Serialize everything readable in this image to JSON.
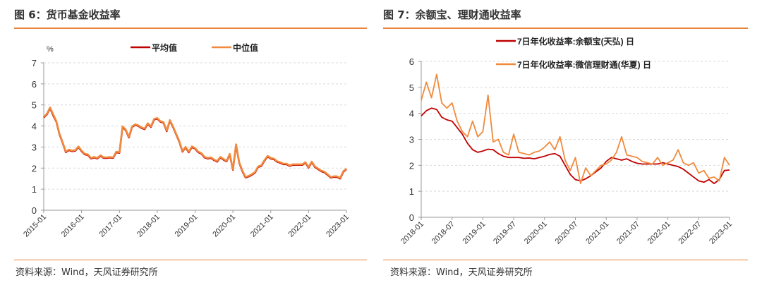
{
  "colors": {
    "accent": "#e8833a",
    "red": "#c00000",
    "orange": "#f08a3c"
  },
  "left": {
    "title": "图 6：货币基金收益率",
    "source": "资料来源：Wind，天风证券研究所"
  },
  "right": {
    "title": "图 7：余额宝、理财通收益率",
    "source": "资料来源：Wind，天风证券研究所"
  },
  "chart_data": [
    {
      "type": "line",
      "title": "货币基金收益率",
      "ylabel": "%",
      "ylim": [
        0,
        7
      ],
      "yticks": [
        "0",
        "1",
        "2",
        "3",
        "4",
        "5",
        "6",
        "7"
      ],
      "xticks": [
        "2015-01",
        "2016-01",
        "2017-01",
        "2018-01",
        "2019-01",
        "2020-01",
        "2021-01",
        "2022-01",
        "2023-01"
      ],
      "x_start": "2015-01",
      "x_step": "month",
      "grid": true,
      "legend": "top",
      "series": [
        {
          "name": "平均值",
          "color": "#c00000",
          "values": [
            4.4,
            4.55,
            4.85,
            4.5,
            4.2,
            3.6,
            3.2,
            2.75,
            2.85,
            2.8,
            2.82,
            3.0,
            2.8,
            2.65,
            2.62,
            2.45,
            2.5,
            2.45,
            2.58,
            2.48,
            2.48,
            2.5,
            2.48,
            2.75,
            2.72,
            3.95,
            3.8,
            3.45,
            3.95,
            4.05,
            4.0,
            3.9,
            3.85,
            4.1,
            3.95,
            4.3,
            4.35,
            4.2,
            4.15,
            3.75,
            4.25,
            3.95,
            3.6,
            3.25,
            2.78,
            2.98,
            2.75,
            3.0,
            2.92,
            2.75,
            2.68,
            2.5,
            2.45,
            2.48,
            2.38,
            2.3,
            2.5,
            2.4,
            2.32,
            2.65,
            1.92,
            3.1,
            2.25,
            1.85,
            1.55,
            1.6,
            1.68,
            1.78,
            2.05,
            2.1,
            2.35,
            2.55,
            2.45,
            2.42,
            2.3,
            2.25,
            2.18,
            2.18,
            2.1,
            2.15,
            2.15,
            2.15,
            2.15,
            2.25,
            2.02,
            2.28,
            2.05,
            1.95,
            1.85,
            1.8,
            1.68,
            1.55,
            1.58,
            1.58,
            1.5,
            1.82,
            1.95
          ]
        },
        {
          "name": "中位值",
          "color": "#f08a3c",
          "values": [
            4.43,
            4.58,
            4.88,
            4.55,
            4.23,
            3.63,
            3.23,
            2.78,
            2.88,
            2.83,
            2.85,
            3.03,
            2.83,
            2.68,
            2.65,
            2.48,
            2.53,
            2.48,
            2.61,
            2.51,
            2.51,
            2.53,
            2.51,
            2.78,
            2.75,
            3.98,
            3.83,
            3.48,
            3.98,
            4.08,
            4.03,
            3.93,
            3.88,
            4.13,
            3.98,
            4.33,
            4.38,
            4.23,
            4.18,
            3.78,
            4.28,
            3.98,
            3.63,
            3.28,
            2.81,
            3.01,
            2.78,
            3.03,
            2.95,
            2.78,
            2.71,
            2.53,
            2.48,
            2.51,
            2.41,
            2.33,
            2.53,
            2.43,
            2.35,
            2.68,
            1.95,
            3.13,
            2.28,
            1.88,
            1.58,
            1.63,
            1.71,
            1.81,
            2.08,
            2.13,
            2.38,
            2.58,
            2.48,
            2.45,
            2.33,
            2.28,
            2.21,
            2.21,
            2.13,
            2.18,
            2.18,
            2.18,
            2.18,
            2.28,
            2.05,
            2.31,
            2.08,
            1.98,
            1.88,
            1.83,
            1.71,
            1.58,
            1.61,
            1.61,
            1.53,
            1.85,
            1.98
          ]
        }
      ]
    },
    {
      "type": "line",
      "title": "余额宝、理财通收益率",
      "ylim": [
        0,
        6
      ],
      "yticks": [
        "0",
        "1",
        "2",
        "3",
        "4",
        "5",
        "6"
      ],
      "xticks": [
        "2018-01",
        "2018-07",
        "2019-01",
        "2019-07",
        "2020-01",
        "2020-07",
        "2021-01",
        "2021-07",
        "2022-01",
        "2022-07",
        "2023-01"
      ],
      "x_start": "2018-01",
      "x_step": "month",
      "grid": true,
      "legend": "top",
      "series": [
        {
          "name": "7日年化收益率:余额宝(天弘) 日",
          "color": "#c00000",
          "values": [
            3.9,
            4.1,
            4.2,
            4.15,
            3.85,
            3.75,
            3.7,
            3.45,
            3.2,
            2.85,
            2.6,
            2.5,
            2.55,
            2.62,
            2.6,
            2.45,
            2.35,
            2.3,
            2.3,
            2.3,
            2.27,
            2.28,
            2.25,
            2.3,
            2.35,
            2.42,
            2.45,
            2.35,
            2.0,
            1.65,
            1.45,
            1.4,
            1.48,
            1.6,
            1.75,
            1.9,
            2.15,
            2.3,
            2.25,
            2.2,
            2.25,
            2.15,
            2.08,
            2.05,
            2.05,
            2.05,
            2.05,
            2.1,
            2.05,
            2.0,
            1.95,
            1.85,
            1.7,
            1.55,
            1.4,
            1.35,
            1.45,
            1.3,
            1.45,
            1.8,
            1.82
          ]
        },
        {
          "name": "7日年化收益率:微信理财通(华夏) 日",
          "color": "#f08a3c",
          "values": [
            4.5,
            5.2,
            4.6,
            5.5,
            4.4,
            4.2,
            4.4,
            3.7,
            3.3,
            3.1,
            3.7,
            3.1,
            3.3,
            4.7,
            2.9,
            3.0,
            2.5,
            2.4,
            3.2,
            2.5,
            2.45,
            2.4,
            2.5,
            2.55,
            2.7,
            2.9,
            2.6,
            3.1,
            2.2,
            1.8,
            2.3,
            1.3,
            1.9,
            1.6,
            1.8,
            2.0,
            2.05,
            2.2,
            2.5,
            3.1,
            2.4,
            2.35,
            2.3,
            2.15,
            2.1,
            2.05,
            2.3,
            2.0,
            2.1,
            2.2,
            2.6,
            2.1,
            2.0,
            2.1,
            1.7,
            1.8,
            1.5,
            1.55,
            1.4,
            2.3,
            2.0
          ]
        }
      ]
    }
  ]
}
